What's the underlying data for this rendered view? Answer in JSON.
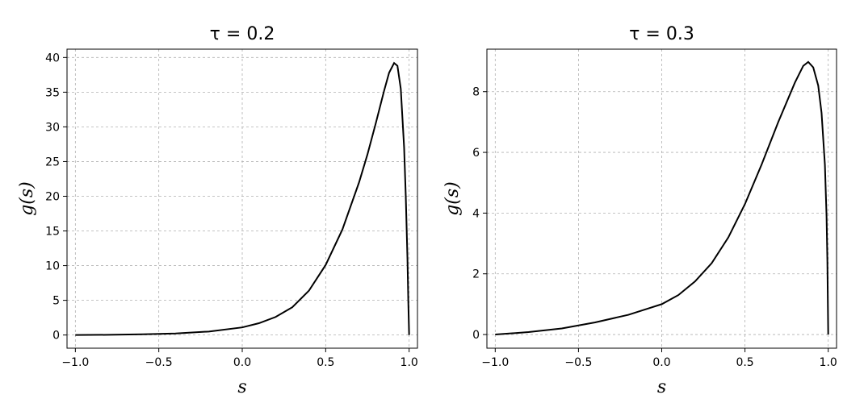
{
  "chart_data": [
    {
      "type": "line",
      "title": "τ = 0.2",
      "xlabel": "s",
      "ylabel": "g(s)",
      "xlim": [
        -1.05,
        1.05
      ],
      "ylim": [
        -1.9,
        41.2
      ],
      "xticks": [
        -1.0,
        -0.5,
        0.0,
        0.5,
        1.0
      ],
      "xtick_labels": [
        "−1.0",
        "−0.5",
        "0.0",
        "0.5",
        "1.0"
      ],
      "yticks": [
        0,
        5,
        10,
        15,
        20,
        25,
        30,
        35,
        40
      ],
      "ytick_labels": [
        "0",
        "5",
        "10",
        "15",
        "20",
        "25",
        "30",
        "35",
        "40"
      ],
      "grid": true,
      "series": [
        {
          "color": "#000000",
          "x": [
            -1.0,
            -0.8,
            -0.6,
            -0.4,
            -0.2,
            0.0,
            0.1,
            0.2,
            0.3,
            0.4,
            0.5,
            0.6,
            0.7,
            0.75,
            0.8,
            0.85,
            0.88,
            0.91,
            0.93,
            0.95,
            0.97,
            0.98,
            0.99,
            0.995,
            1.0
          ],
          "y": [
            0.0,
            0.03,
            0.1,
            0.22,
            0.5,
            1.1,
            1.7,
            2.6,
            4.0,
            6.4,
            10.1,
            15.2,
            22.0,
            26.0,
            30.5,
            35.2,
            37.8,
            39.2,
            38.8,
            35.5,
            27.0,
            20.0,
            11.0,
            5.0,
            0.0
          ]
        }
      ]
    },
    {
      "type": "line",
      "title": "τ = 0.3",
      "xlabel": "s",
      "ylabel": "g(s)",
      "xlim": [
        -1.05,
        1.05
      ],
      "ylim": [
        -0.45,
        9.4
      ],
      "xticks": [
        -1.0,
        -0.5,
        0.0,
        0.5,
        1.0
      ],
      "xtick_labels": [
        "−1.0",
        "−0.5",
        "0.0",
        "0.5",
        "1.0"
      ],
      "yticks": [
        0,
        2,
        4,
        6,
        8
      ],
      "ytick_labels": [
        "0",
        "2",
        "4",
        "6",
        "8"
      ],
      "grid": true,
      "series": [
        {
          "color": "#000000",
          "x": [
            -1.0,
            -0.8,
            -0.6,
            -0.4,
            -0.2,
            0.0,
            0.1,
            0.2,
            0.3,
            0.4,
            0.5,
            0.6,
            0.7,
            0.8,
            0.85,
            0.88,
            0.91,
            0.94,
            0.96,
            0.98,
            0.99,
            0.995,
            1.0
          ],
          "y": [
            0.0,
            0.08,
            0.2,
            0.4,
            0.65,
            1.0,
            1.3,
            1.75,
            2.35,
            3.2,
            4.3,
            5.6,
            7.0,
            8.3,
            8.85,
            8.98,
            8.8,
            8.2,
            7.3,
            5.6,
            3.9,
            2.4,
            0.0
          ]
        }
      ]
    }
  ]
}
